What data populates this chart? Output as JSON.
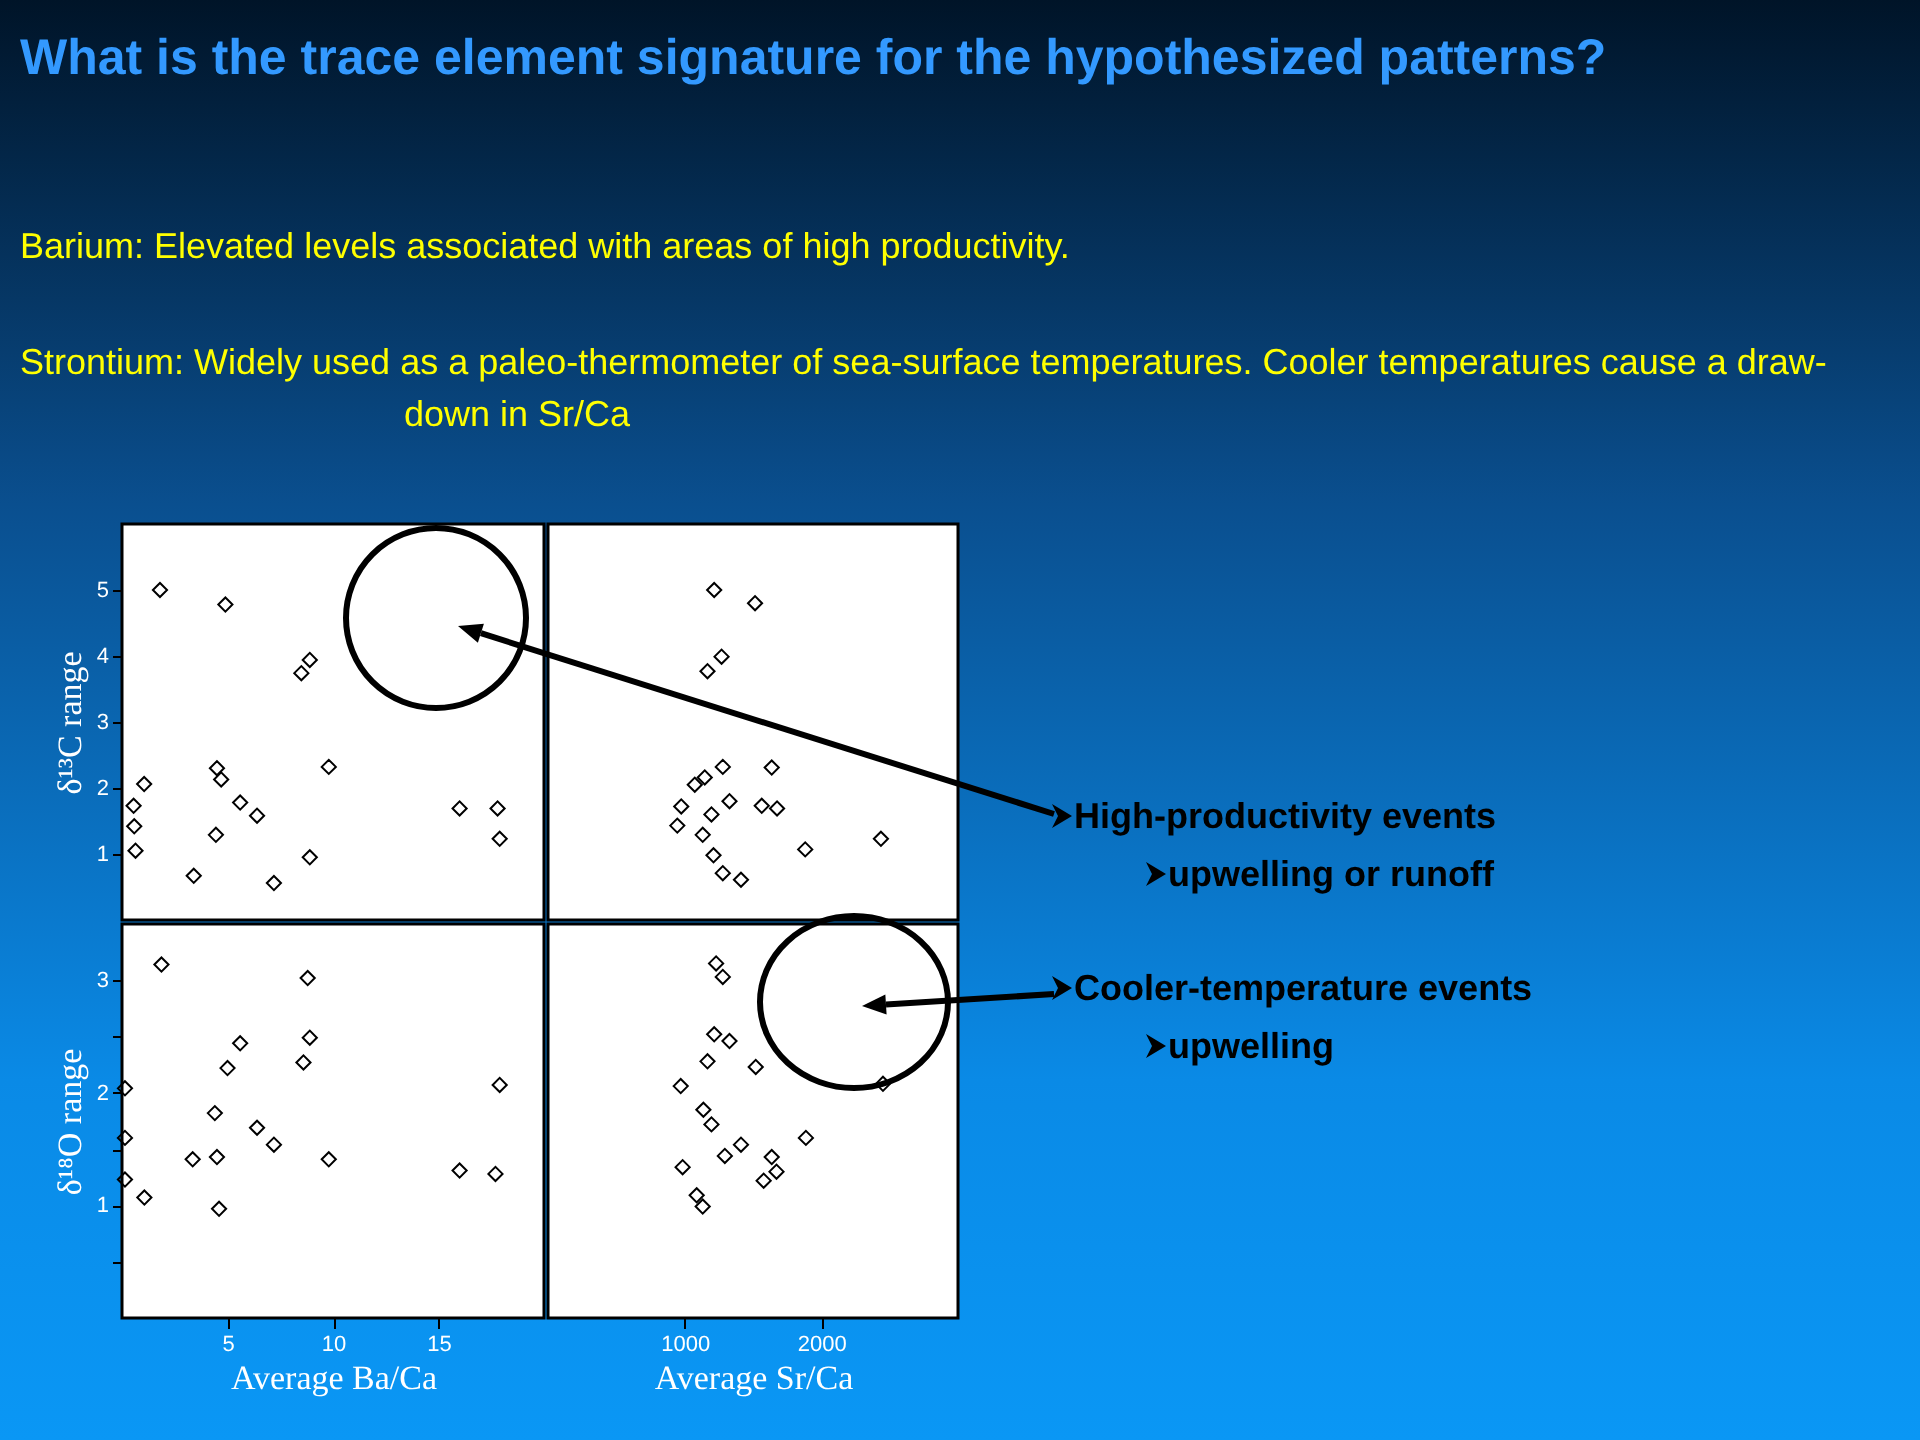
{
  "chart_data": [
    {
      "type": "scatter",
      "title": "What is the trace element signature for the hypothesized patterns?",
      "annotations": [
        "Barium: Elevated levels associated with areas of high productivity.",
        "Strontium: Widely used as a paleo-thermometer of sea-surface temperatures.  Cooler temperatures cause a draw-down in Sr/Ca"
      ],
      "ylabel": "δ¹³C range",
      "xlim": [
        0,
        20
      ],
      "ylim": [
        0,
        6
      ],
      "yticks": [
        1,
        2,
        3,
        4,
        5
      ],
      "tick_labels": "y",
      "marker": "diamond",
      "x": [
        1.8,
        4.9,
        8.5,
        8.9,
        1.05,
        4.5,
        4.7,
        9.8,
        0.55,
        0.58,
        0.64,
        5.6,
        6.4,
        4.45,
        3.4,
        7.2,
        8.9,
        16.0,
        17.8,
        17.9
      ],
      "series": [
        {
          "color": "#000000",
          "values": [
            5.0,
            4.78,
            3.74,
            3.94,
            2.06,
            2.3,
            2.13,
            2.32,
            1.73,
            1.42,
            1.05,
            1.78,
            1.58,
            1.29,
            0.67,
            0.56,
            0.95,
            1.69,
            1.69,
            1.23
          ]
        }
      ]
    },
    {
      "type": "scatter",
      "annotations": [
        "High-productivity events",
        "upwelling or runoff"
      ],
      "xlim": [
        0,
        3000
      ],
      "ylim": [
        0,
        6
      ],
      "tick_labels": false,
      "marker": "diamond",
      "x": [
        1216,
        1515,
        1167,
        1270,
        1279,
        1637,
        1147,
        1074,
        975,
        1196,
        1328,
        1564,
        1676,
        946,
        1132,
        1211,
        1279,
        1412,
        1882,
        2436
      ],
      "series": [
        {
          "color": "#000000",
          "values": [
            5.0,
            4.8,
            3.77,
            3.99,
            2.32,
            2.31,
            2.16,
            2.05,
            1.72,
            1.6,
            1.8,
            1.73,
            1.69,
            1.43,
            1.29,
            0.98,
            0.71,
            0.61,
            1.07,
            1.23
          ]
        }
      ]
    },
    {
      "type": "scatter",
      "xlabel": "Average Ba/Ca",
      "ylabel": "δ¹⁸O range",
      "xlim": [
        0,
        20
      ],
      "xticks": [
        5,
        10,
        15
      ],
      "ylim": [
        0,
        3.5
      ],
      "yticks": [
        {
          "value": 0.5,
          "label": null
        },
        1,
        {
          "value": 1.5,
          "label": null
        },
        2,
        {
          "value": 2.5,
          "label": null
        },
        3
      ],
      "marker": "diamond",
      "x": [
        1.87,
        8.8,
        8.9,
        5.6,
        5.0,
        8.6,
        0.14,
        17.9,
        4.4,
        6.4,
        7.2,
        0.14,
        3.35,
        4.5,
        9.8,
        0.14,
        1.06,
        4.6,
        16.0,
        17.7
      ],
      "series": [
        {
          "color": "#000000",
          "values": [
            3.14,
            3.02,
            2.49,
            2.44,
            2.22,
            2.27,
            2.04,
            2.07,
            1.82,
            1.69,
            1.54,
            1.6,
            1.41,
            1.43,
            1.41,
            1.23,
            1.07,
            0.97,
            1.31,
            1.28
          ]
        }
      ]
    },
    {
      "type": "scatter",
      "annotations": [
        "Cooler-temperature events",
        "upwelling"
      ],
      "xlabel": "Average Sr/Ca",
      "xlim": [
        0,
        3000
      ],
      "xticks": [
        1000,
        2000
      ],
      "ylim": [
        0,
        3.5
      ],
      "tick_labels": "x",
      "marker": "diamond",
      "x": [
        1230,
        1279,
        1216,
        1328,
        1167,
        1520,
        971,
        2451,
        1137,
        1196,
        1887,
        1412,
        1294,
        1637,
        1672,
        1578,
        985,
        1088,
        1132
      ],
      "series": [
        {
          "color": "#000000",
          "values": [
            3.15,
            3.03,
            2.52,
            2.46,
            2.28,
            2.23,
            2.06,
            2.08,
            1.85,
            1.72,
            1.6,
            1.54,
            1.44,
            1.43,
            1.3,
            1.22,
            1.34,
            1.09,
            0.99
          ]
        }
      ]
    }
  ]
}
